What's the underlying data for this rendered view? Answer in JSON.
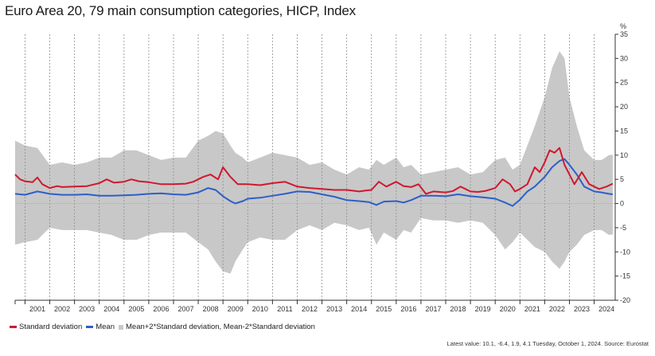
{
  "title": "Euro Area 20, 79 main consumption categories, HICP, Index",
  "footnote": "Latest value: 10.1, -6.4, 1.9, 4.1 Tuesday, October 1, 2024. Source: Eurostat",
  "colors": {
    "std": "#d0182f",
    "mean": "#2e5fc8",
    "band": "#c8c8c8",
    "grid": "#8c8c8c"
  },
  "chart_data": {
    "type": "line",
    "title": "Euro Area 20, 79 main consumption categories, HICP, Index",
    "y_unit": "%",
    "ylim": [
      -20,
      35
    ],
    "yticks": [
      -20,
      -15,
      -10,
      -5,
      0,
      5,
      10,
      15,
      20,
      25,
      30,
      35
    ],
    "x_categories": [
      "2001",
      "2002",
      "2003",
      "2004",
      "2005",
      "2006",
      "2007",
      "2008",
      "2009",
      "2010",
      "2011",
      "2012",
      "2013",
      "2014",
      "2015",
      "2016",
      "2017",
      "2018",
      "2019",
      "2020",
      "2021",
      "2022",
      "2023",
      "2024"
    ],
    "x_range": [
      2000.6,
      2024.85
    ],
    "legend": {
      "position": "bottom-left",
      "items": [
        {
          "name": "Standard deviation",
          "kind": "line"
        },
        {
          "name": "Mean",
          "kind": "line"
        },
        {
          "name": "Mean+2*Standard deviation, Mean-2*Standard deviation",
          "kind": "area"
        }
      ]
    },
    "series": [
      {
        "name": "Standard deviation",
        "x": [
          2000.6,
          2000.8,
          2001.0,
          2001.3,
          2001.5,
          2001.7,
          2002.0,
          2002.3,
          2002.5,
          2003.0,
          2003.5,
          2004.0,
          2004.3,
          2004.6,
          2005.0,
          2005.3,
          2005.6,
          2006.0,
          2006.5,
          2007.0,
          2007.5,
          2007.8,
          2008.2,
          2008.5,
          2008.8,
          2009.0,
          2009.3,
          2009.6,
          2010.0,
          2010.5,
          2011.0,
          2011.5,
          2012.0,
          2012.5,
          2013.0,
          2013.5,
          2014.0,
          2014.5,
          2014.8,
          2015.0,
          2015.3,
          2015.6,
          2016.0,
          2016.3,
          2016.6,
          2016.9,
          2017.2,
          2017.5,
          2018.0,
          2018.3,
          2018.6,
          2019.0,
          2019.3,
          2019.6,
          2020.0,
          2020.3,
          2020.6,
          2020.8,
          2021.0,
          2021.3,
          2021.6,
          2021.8,
          2022.0,
          2022.2,
          2022.4,
          2022.6,
          2022.8,
          2023.0,
          2023.2,
          2023.5,
          2023.8,
          2024.0,
          2024.2,
          2024.5,
          2024.75
        ],
        "y": [
          6.0,
          5.0,
          4.6,
          4.4,
          5.4,
          4.0,
          3.2,
          3.6,
          3.4,
          3.5,
          3.6,
          4.2,
          5.0,
          4.3,
          4.5,
          5.0,
          4.6,
          4.4,
          4.0,
          4.0,
          4.1,
          4.5,
          5.5,
          6.0,
          5.0,
          7.5,
          5.5,
          4.0,
          4.0,
          3.8,
          4.2,
          4.5,
          3.5,
          3.2,
          3.0,
          2.8,
          2.8,
          2.5,
          2.7,
          2.8,
          4.5,
          3.5,
          4.5,
          3.6,
          3.4,
          4.0,
          2.0,
          2.5,
          2.3,
          2.6,
          3.5,
          2.5,
          2.4,
          2.6,
          3.2,
          5.0,
          4.0,
          2.5,
          3.0,
          4.0,
          7.5,
          6.5,
          8.5,
          11.0,
          10.5,
          11.5,
          8.0,
          6.0,
          4.0,
          6.5,
          4.0,
          3.5,
          3.0,
          3.5,
          4.1
        ]
      },
      {
        "name": "Mean",
        "x": [
          2000.6,
          2001.0,
          2001.5,
          2002.0,
          2002.5,
          2003.0,
          2003.5,
          2004.0,
          2004.5,
          2005.0,
          2005.5,
          2006.0,
          2006.5,
          2007.0,
          2007.5,
          2008.0,
          2008.4,
          2008.7,
          2009.0,
          2009.3,
          2009.5,
          2009.8,
          2010.0,
          2010.5,
          2011.0,
          2011.5,
          2012.0,
          2012.5,
          2013.0,
          2013.5,
          2014.0,
          2014.5,
          2014.9,
          2015.2,
          2015.5,
          2016.0,
          2016.3,
          2016.6,
          2017.0,
          2017.5,
          2018.0,
          2018.5,
          2019.0,
          2019.5,
          2020.0,
          2020.4,
          2020.7,
          2021.0,
          2021.3,
          2021.6,
          2022.0,
          2022.3,
          2022.6,
          2022.8,
          2023.0,
          2023.3,
          2023.6,
          2024.0,
          2024.3,
          2024.6,
          2024.75
        ],
        "y": [
          2.0,
          1.8,
          2.5,
          2.0,
          1.8,
          1.8,
          1.9,
          1.6,
          1.6,
          1.7,
          1.8,
          2.0,
          2.1,
          1.9,
          1.8,
          2.3,
          3.2,
          2.8,
          1.5,
          0.5,
          0.0,
          0.5,
          1.0,
          1.2,
          1.6,
          2.0,
          2.5,
          2.4,
          1.9,
          1.4,
          0.7,
          0.5,
          0.3,
          -0.3,
          0.4,
          0.5,
          0.2,
          0.7,
          1.6,
          1.6,
          1.5,
          1.9,
          1.5,
          1.3,
          1.0,
          0.2,
          -0.5,
          0.8,
          2.5,
          3.5,
          5.5,
          7.5,
          8.8,
          9.2,
          8.0,
          6.0,
          3.5,
          2.5,
          2.3,
          2.0,
          1.9
        ]
      },
      {
        "name": "Mean+2*Standard deviation, Mean-2*Standard deviation",
        "x": [
          2000.6,
          2001.0,
          2001.5,
          2002.0,
          2002.5,
          2003.0,
          2003.5,
          2004.0,
          2004.5,
          2005.0,
          2005.5,
          2006.0,
          2006.5,
          2007.0,
          2007.5,
          2008.0,
          2008.4,
          2008.7,
          2009.0,
          2009.3,
          2009.5,
          2009.8,
          2010.0,
          2010.5,
          2011.0,
          2011.5,
          2012.0,
          2012.5,
          2013.0,
          2013.5,
          2014.0,
          2014.5,
          2014.9,
          2015.2,
          2015.5,
          2016.0,
          2016.3,
          2016.6,
          2017.0,
          2017.5,
          2018.0,
          2018.5,
          2019.0,
          2019.5,
          2020.0,
          2020.4,
          2020.7,
          2021.0,
          2021.3,
          2021.6,
          2022.0,
          2022.3,
          2022.6,
          2022.8,
          2023.0,
          2023.3,
          2023.6,
          2024.0,
          2024.3,
          2024.6,
          2024.75
        ],
        "upper": [
          13.0,
          12.0,
          11.5,
          8.0,
          8.5,
          8.0,
          8.5,
          9.5,
          9.5,
          11.0,
          11.0,
          10.0,
          9.0,
          9.5,
          9.5,
          13.0,
          14.0,
          15.0,
          14.5,
          12.0,
          10.5,
          9.5,
          8.5,
          9.5,
          10.5,
          10.0,
          9.5,
          8.0,
          8.5,
          7.0,
          6.0,
          7.5,
          7.0,
          9.0,
          8.0,
          9.5,
          7.5,
          8.0,
          6.0,
          6.5,
          7.0,
          7.5,
          6.0,
          6.5,
          9.0,
          9.5,
          7.0,
          8.0,
          12.0,
          16.0,
          22.0,
          28.0,
          31.5,
          30.0,
          22.0,
          16.0,
          11.0,
          9.0,
          9.0,
          10.0,
          10.1
        ],
        "lower": [
          -8.5,
          -8.0,
          -7.5,
          -5.0,
          -5.5,
          -5.5,
          -5.5,
          -6.0,
          -6.5,
          -7.5,
          -7.5,
          -6.5,
          -6.0,
          -6.0,
          -6.0,
          -8.0,
          -9.5,
          -12.0,
          -14.0,
          -14.5,
          -12.0,
          -9.5,
          -8.0,
          -7.0,
          -7.5,
          -7.5,
          -5.5,
          -4.5,
          -5.5,
          -4.0,
          -4.5,
          -5.5,
          -5.0,
          -8.5,
          -6.0,
          -7.5,
          -5.5,
          -6.0,
          -3.0,
          -3.5,
          -3.5,
          -4.0,
          -3.5,
          -4.0,
          -6.5,
          -9.5,
          -8.0,
          -6.0,
          -7.5,
          -9.0,
          -10.0,
          -12.0,
          -13.5,
          -12.0,
          -10.0,
          -8.5,
          -6.5,
          -5.5,
          -5.5,
          -6.5,
          -6.4
        ]
      }
    ]
  }
}
